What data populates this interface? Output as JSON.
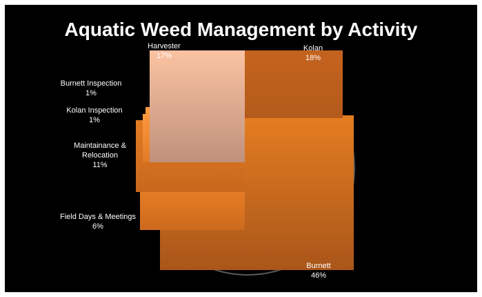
{
  "chart_data": {
    "type": "pie",
    "title": "Aquatic Weed Management by Activity",
    "categories": [
      "Burnett",
      "Field Days & Meetings",
      "Maintainance & Relocation",
      "Kolan Inspection",
      "Burnett Inspection",
      "Harvester",
      "Kolan"
    ],
    "values": [
      46,
      6,
      11,
      1,
      1,
      17,
      18
    ],
    "value_labels": [
      "46%",
      "6%",
      "11%",
      "1%",
      "1%",
      "17%",
      "18%"
    ],
    "unit": "%",
    "legend": "none",
    "colors": {
      "background": "#000000",
      "title": "#ffffff",
      "burnett": "#D9731F",
      "field_days": "#E07A22",
      "maintainance": "#D97520",
      "kolan_inspection": "#E88030",
      "burnett_inspection": "#F08A35",
      "harvester": "#F8B996",
      "kolan": "#C4641E"
    }
  }
}
